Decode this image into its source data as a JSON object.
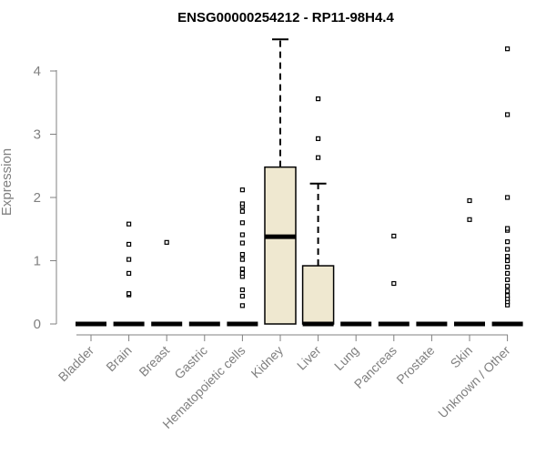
{
  "chart_data": {
    "type": "boxplot",
    "title": "ENSG00000254212 - RP11-98H4.4",
    "ylabel": "Expression",
    "xlabel": "",
    "ylim": [
      0,
      4.5
    ],
    "yticks": [
      0,
      1,
      2,
      3,
      4
    ],
    "box_fill": "#efe8d0",
    "categories": [
      "Bladder",
      "Brain",
      "Breast",
      "Gastric",
      "Hematopoietic cells",
      "Kidney",
      "Liver",
      "Lung",
      "Pancreas",
      "Prostate",
      "Skin",
      "Unknown / Other"
    ],
    "boxes": [
      {
        "category": "Bladder",
        "min": 0,
        "q1": 0,
        "median": 0,
        "q3": 0,
        "max": 0,
        "outliers": []
      },
      {
        "category": "Brain",
        "min": 0,
        "q1": 0,
        "median": 0,
        "q3": 0,
        "max": 0,
        "outliers": [
          0.46,
          0.48,
          0.8,
          1.02,
          1.26,
          1.58
        ]
      },
      {
        "category": "Breast",
        "min": 0,
        "q1": 0,
        "median": 0,
        "q3": 0,
        "max": 0,
        "outliers": [
          1.29
        ]
      },
      {
        "category": "Gastric",
        "min": 0,
        "q1": 0,
        "median": 0,
        "q3": 0,
        "max": 0,
        "outliers": []
      },
      {
        "category": "Hematopoietic cells",
        "min": 0,
        "q1": 0,
        "median": 0,
        "q3": 0,
        "max": 0,
        "outliers": [
          0.29,
          0.44,
          0.54,
          0.75,
          0.8,
          0.87,
          1.02,
          1.1,
          1.28,
          1.41,
          1.6,
          1.78,
          1.86,
          1.9,
          2.12
        ]
      },
      {
        "category": "Kidney",
        "min": 0,
        "q1": 0,
        "median": 1.38,
        "q3": 2.48,
        "max": 4.5,
        "outliers": []
      },
      {
        "category": "Liver",
        "min": 0,
        "q1": 0,
        "median": 0,
        "q3": 0.92,
        "max": 2.22,
        "outliers": [
          2.63,
          2.93,
          3.56
        ]
      },
      {
        "category": "Lung",
        "min": 0,
        "q1": 0,
        "median": 0,
        "q3": 0,
        "max": 0,
        "outliers": []
      },
      {
        "category": "Pancreas",
        "min": 0,
        "q1": 0,
        "median": 0,
        "q3": 0,
        "max": 0,
        "outliers": [
          0.64,
          1.39
        ]
      },
      {
        "category": "Prostate",
        "min": 0,
        "q1": 0,
        "median": 0,
        "q3": 0,
        "max": 0,
        "outliers": []
      },
      {
        "category": "Skin",
        "min": 0,
        "q1": 0,
        "median": 0,
        "q3": 0,
        "max": 0,
        "outliers": [
          1.65,
          1.95
        ]
      },
      {
        "category": "Unknown / Other",
        "min": 0,
        "q1": 0,
        "median": 0,
        "q3": 0,
        "max": 0,
        "outliers": [
          0.3,
          0.35,
          0.4,
          0.45,
          0.52,
          0.6,
          0.7,
          0.8,
          0.9,
          1.0,
          1.07,
          1.18,
          1.3,
          1.48,
          1.51,
          2.0,
          3.31,
          4.35
        ]
      }
    ]
  }
}
